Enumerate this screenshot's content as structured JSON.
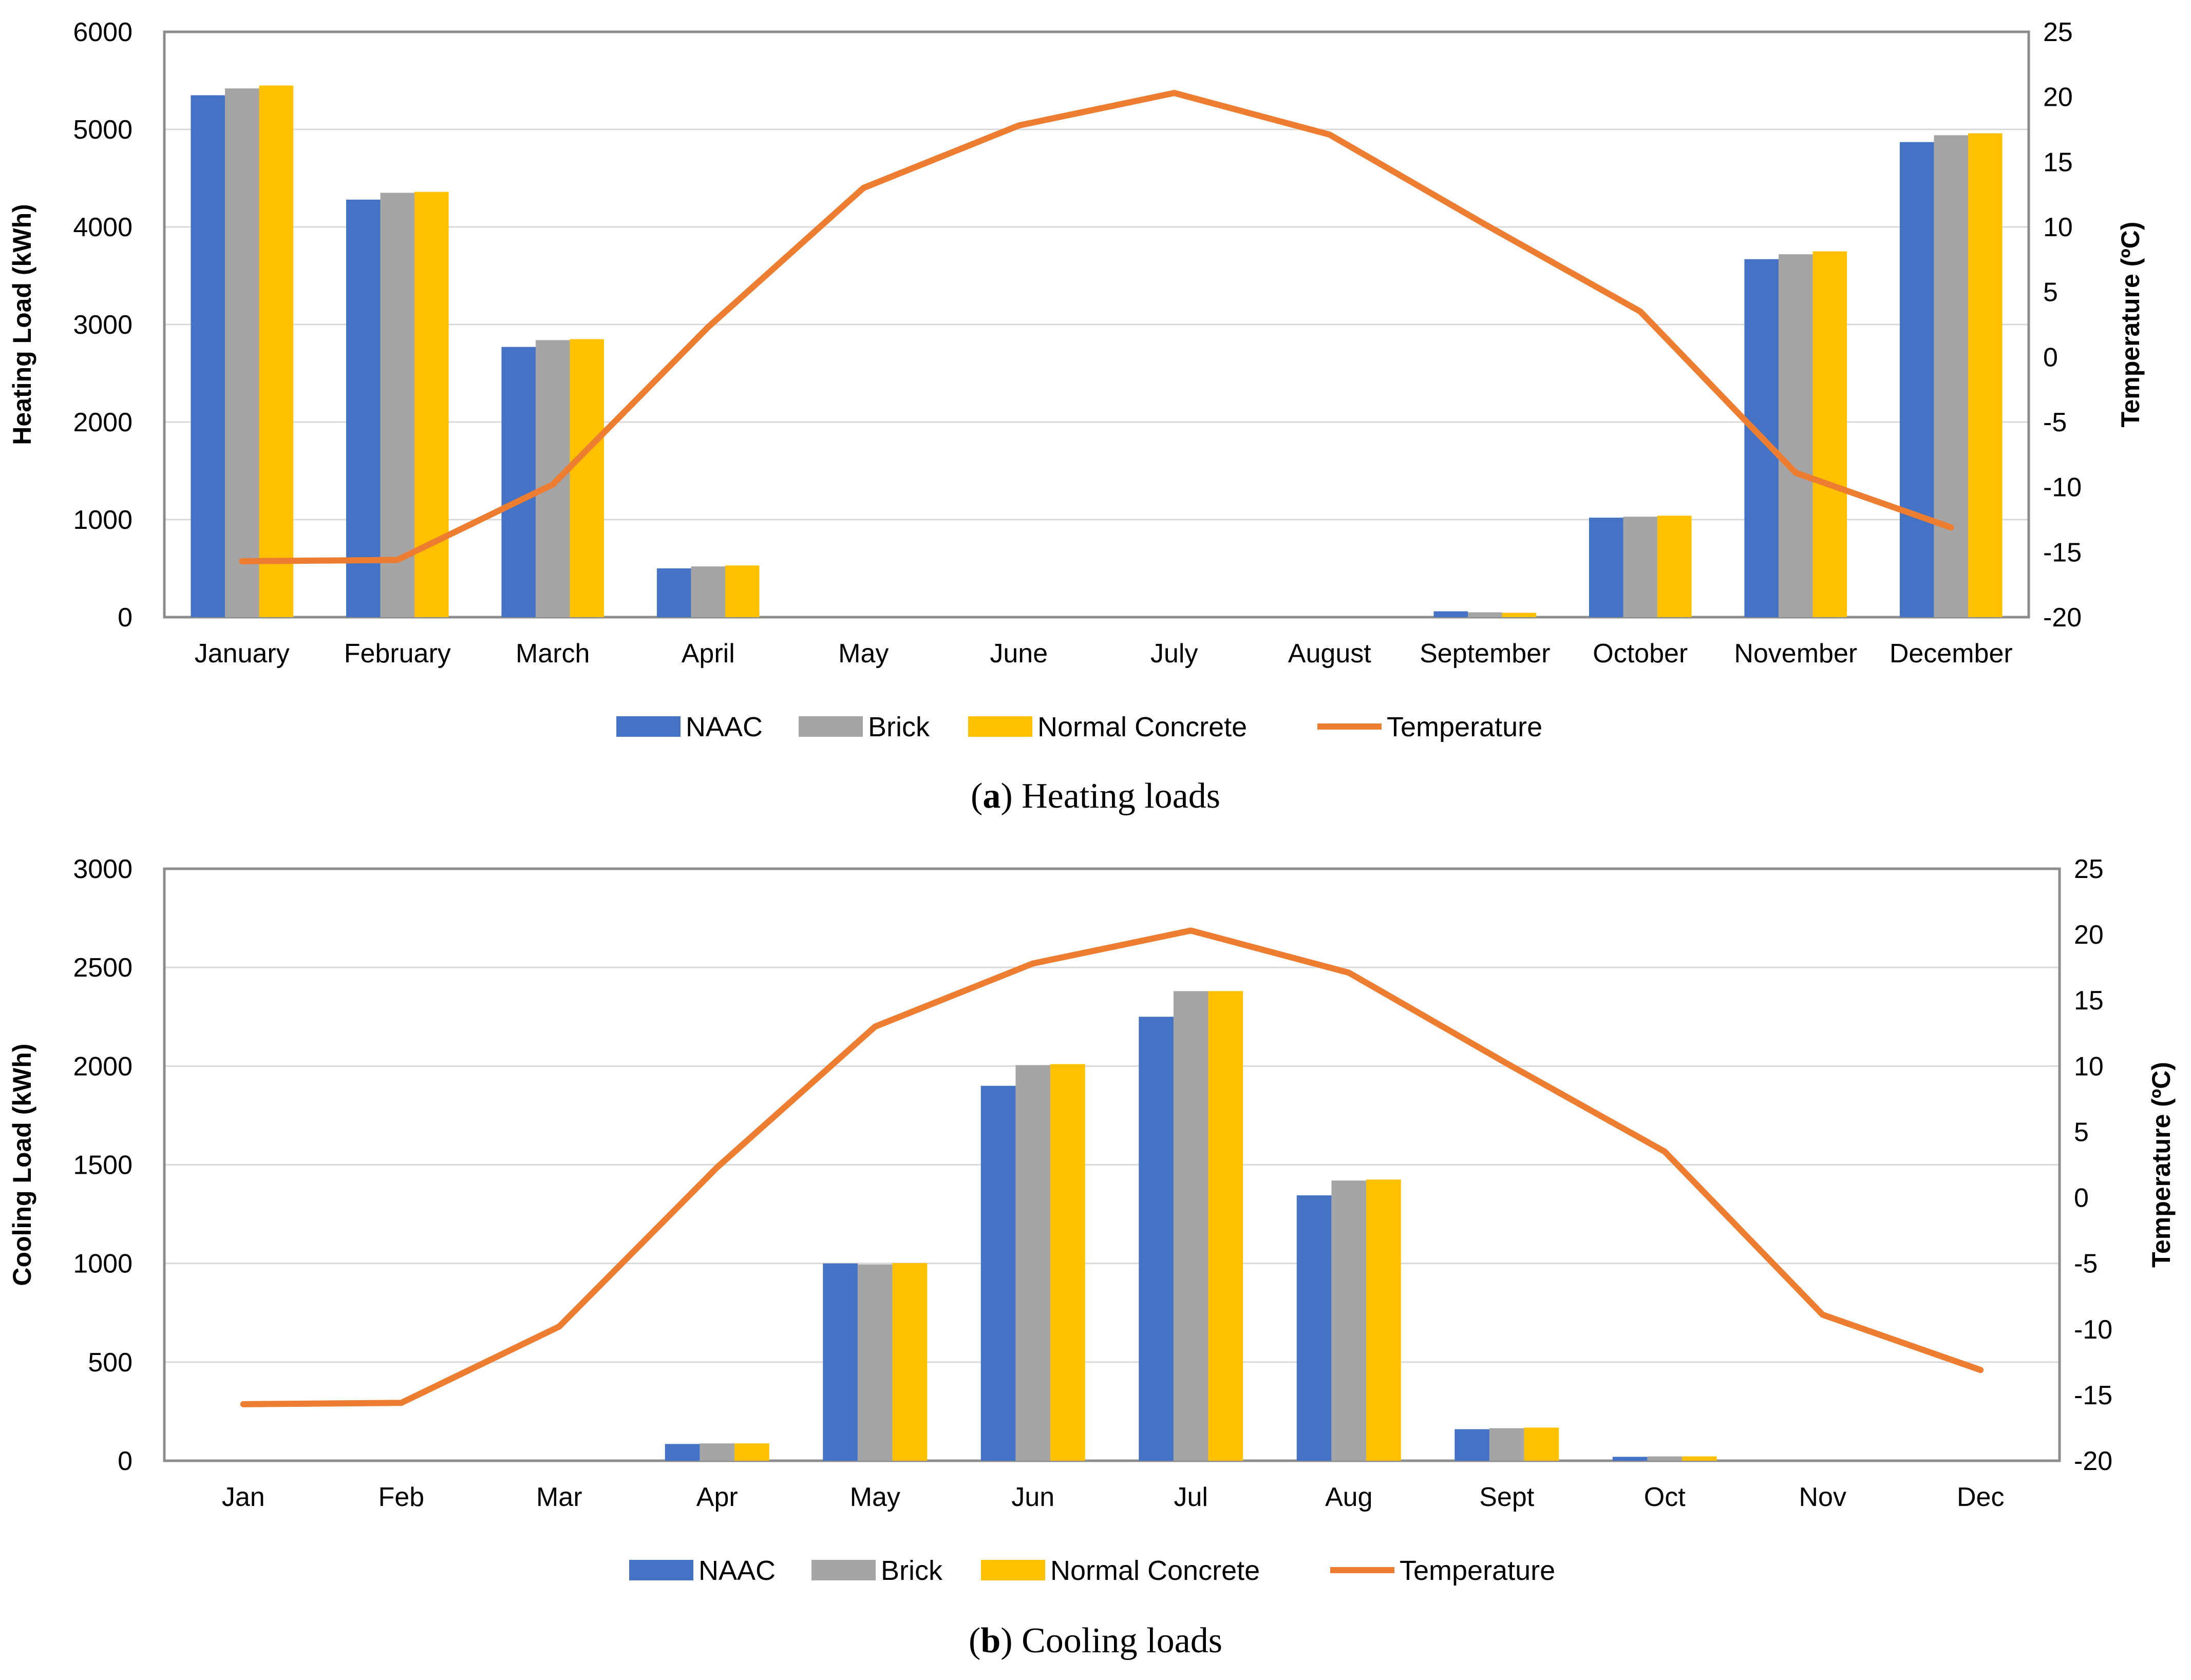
{
  "chart_data": [
    {
      "type": "bar",
      "subtitle": "(a) Heating loads",
      "caption_letter": "a",
      "caption_title": "Heating loads",
      "categories": [
        "January",
        "February",
        "March",
        "April",
        "May",
        "June",
        "July",
        "August",
        "September",
        "October",
        "November",
        "December"
      ],
      "series": [
        {
          "name": "NAAC",
          "color": "#4472C4",
          "values": [
            5350,
            4280,
            2770,
            500,
            0,
            0,
            0,
            0,
            60,
            1020,
            3670,
            4870
          ]
        },
        {
          "name": "Brick",
          "color": "#A5A5A5",
          "values": [
            5420,
            4350,
            2840,
            520,
            0,
            0,
            0,
            0,
            50,
            1030,
            3720,
            4940
          ]
        },
        {
          "name": "Normal Concrete",
          "color": "#FFC000",
          "values": [
            5450,
            4360,
            2850,
            530,
            0,
            0,
            0,
            0,
            45,
            1040,
            3750,
            4960
          ]
        }
      ],
      "line_series": {
        "name": "Temperature",
        "color": "#ED7D31",
        "values": [
          -15.7,
          -15.6,
          -9.8,
          2.3,
          13.0,
          17.8,
          20.3,
          17.1,
          10.2,
          3.5,
          -8.9,
          -13.1
        ]
      },
      "ylabel": "Heating Load (kWh)",
      "y2label": "Temperature (ºC)",
      "ylim": [
        0,
        6000
      ],
      "yticks": [
        "0",
        "1000",
        "2000",
        "3000",
        "4000",
        "5000",
        "6000"
      ],
      "y2lim": [
        -20,
        25
      ],
      "y2ticks": [
        "-20",
        "-15",
        "-10",
        "-5",
        "0",
        "5",
        "10",
        "15",
        "20",
        "25"
      ],
      "grid": true,
      "legend_position": "bottom",
      "legend": [
        "NAAC",
        "Brick",
        "Normal Concrete",
        "Temperature"
      ]
    },
    {
      "type": "bar",
      "subtitle": "(b) Cooling loads",
      "caption_letter": "b",
      "caption_title": "Cooling loads",
      "categories": [
        "Jan",
        "Feb",
        "Mar",
        "Apr",
        "May",
        "Jun",
        "Jul",
        "Aug",
        "Sept",
        "Oct",
        "Nov",
        "Dec"
      ],
      "series": [
        {
          "name": "NAAC",
          "color": "#4472C4",
          "values": [
            0,
            0,
            0,
            85,
            1000,
            1900,
            2250,
            1345,
            160,
            20,
            0,
            0
          ]
        },
        {
          "name": "Brick",
          "color": "#A5A5A5",
          "values": [
            0,
            0,
            0,
            88,
            995,
            2005,
            2380,
            1420,
            165,
            22,
            0,
            0
          ]
        },
        {
          "name": "Normal Concrete",
          "color": "#FFC000",
          "values": [
            0,
            0,
            0,
            88,
            1002,
            2010,
            2380,
            1425,
            168,
            22,
            0,
            0
          ]
        }
      ],
      "line_series": {
        "name": "Temperature",
        "color": "#ED7D31",
        "values": [
          -15.7,
          -15.6,
          -9.8,
          2.3,
          13.0,
          17.8,
          20.3,
          17.1,
          10.2,
          3.5,
          -8.9,
          -13.1
        ]
      },
      "ylabel": "Cooling Load (kWh)",
      "y2label": "Temperature (ºC)",
      "ylim": [
        0,
        3000
      ],
      "yticks": [
        "0",
        "500",
        "1000",
        "1500",
        "2000",
        "2500",
        "3000"
      ],
      "y2lim": [
        -20,
        25
      ],
      "y2ticks": [
        "-20",
        "-15",
        "-10",
        "-5",
        "0",
        "5",
        "10",
        "15",
        "20",
        "25"
      ],
      "grid": true,
      "legend_position": "bottom",
      "legend": [
        "NAAC",
        "Brick",
        "Normal Concrete",
        "Temperature"
      ]
    }
  ]
}
